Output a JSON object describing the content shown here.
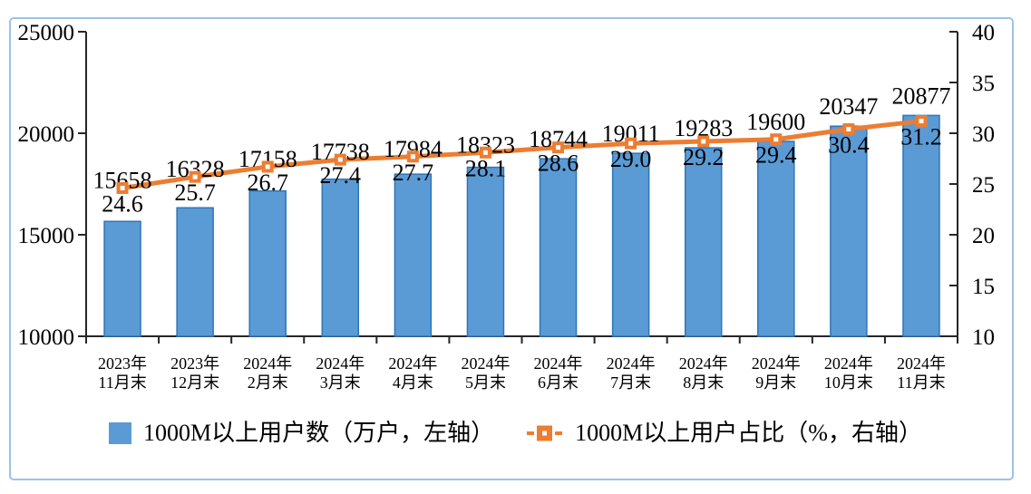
{
  "chart_data": {
    "type": "bar+line",
    "title": "",
    "categories": [
      [
        "2023年",
        "11月末"
      ],
      [
        "2023年",
        "12月末"
      ],
      [
        "2024年",
        "2月末"
      ],
      [
        "2024年",
        "3月末"
      ],
      [
        "2024年",
        "4月末"
      ],
      [
        "2024年",
        "5月末"
      ],
      [
        "2024年",
        "6月末"
      ],
      [
        "2024年",
        "7月末"
      ],
      [
        "2024年",
        "8月末"
      ],
      [
        "2024年",
        "9月末"
      ],
      [
        "2024年",
        "10月末"
      ],
      [
        "2024年",
        "11月末"
      ]
    ],
    "series": [
      {
        "name": "1000M以上用户数（万户，左轴）",
        "type": "bar",
        "axis": "left",
        "values": [
          15658,
          16328,
          17158,
          17738,
          17984,
          18323,
          18744,
          19011,
          19283,
          19600,
          20347,
          20877
        ],
        "fill": "#5B9BD5",
        "border": "#2E75B6"
      },
      {
        "name": "1000M以上用户占比（%，右轴）",
        "type": "line",
        "axis": "right",
        "values": [
          "24.6",
          "25.7",
          "26.7",
          "27.4",
          "27.7",
          "28.1",
          "28.6",
          "29.0",
          "29.2",
          "29.4",
          "30.4",
          "31.2"
        ],
        "color": "#ED7D31",
        "marker": "square-with-white-center"
      }
    ],
    "left_axis": {
      "min": 10000,
      "max": 25000,
      "step": 5000,
      "ticks": [
        "25000",
        "20000",
        "15000",
        "10000"
      ]
    },
    "right_axis": {
      "min": 10,
      "max": 40,
      "step": 5,
      "ticks": [
        "40",
        "35",
        "30",
        "25",
        "20",
        "15",
        "10"
      ]
    },
    "grid": false,
    "legend_position": "bottom",
    "colors": {
      "frame_border": "#9DC3E6",
      "axis_line": "#262626",
      "label_text": "#000000",
      "background": "#FFFFFF"
    }
  }
}
